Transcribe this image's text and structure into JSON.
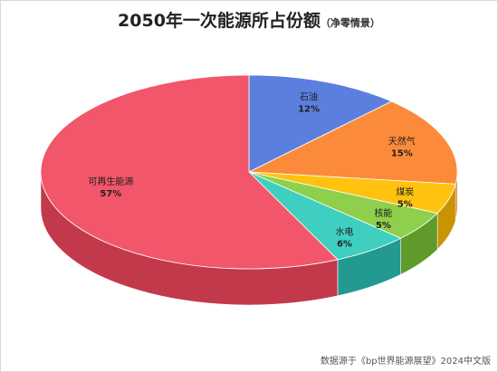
{
  "chart_data": {
    "type": "pie",
    "title": "2050年一次能源所占份额",
    "subtitle": "（净零情景）",
    "slices": [
      {
        "label": "石油",
        "value": 12,
        "pct_text": "12%",
        "color": "#5b7fde",
        "side": "#3f5fb5"
      },
      {
        "label": "天然气",
        "value": 15,
        "pct_text": "15%",
        "color": "#fb8b3a",
        "side": "#c76a24"
      },
      {
        "label": "煤炭",
        "value": 5,
        "pct_text": "5%",
        "color": "#ffc20e",
        "side": "#c99400"
      },
      {
        "label": "核能",
        "value": 5,
        "pct_text": "5%",
        "color": "#8ed04b",
        "side": "#5f9a2b"
      },
      {
        "label": "水电",
        "value": 6,
        "pct_text": "6%",
        "color": "#3ecfc0",
        "side": "#229a8f"
      },
      {
        "label": "可再生能源",
        "value": 57,
        "pct_text": "57%",
        "color": "#f2566a",
        "side": "#c2394c"
      }
    ]
  },
  "source_note": "数据源于《bp世界能源展望》2024中文版"
}
